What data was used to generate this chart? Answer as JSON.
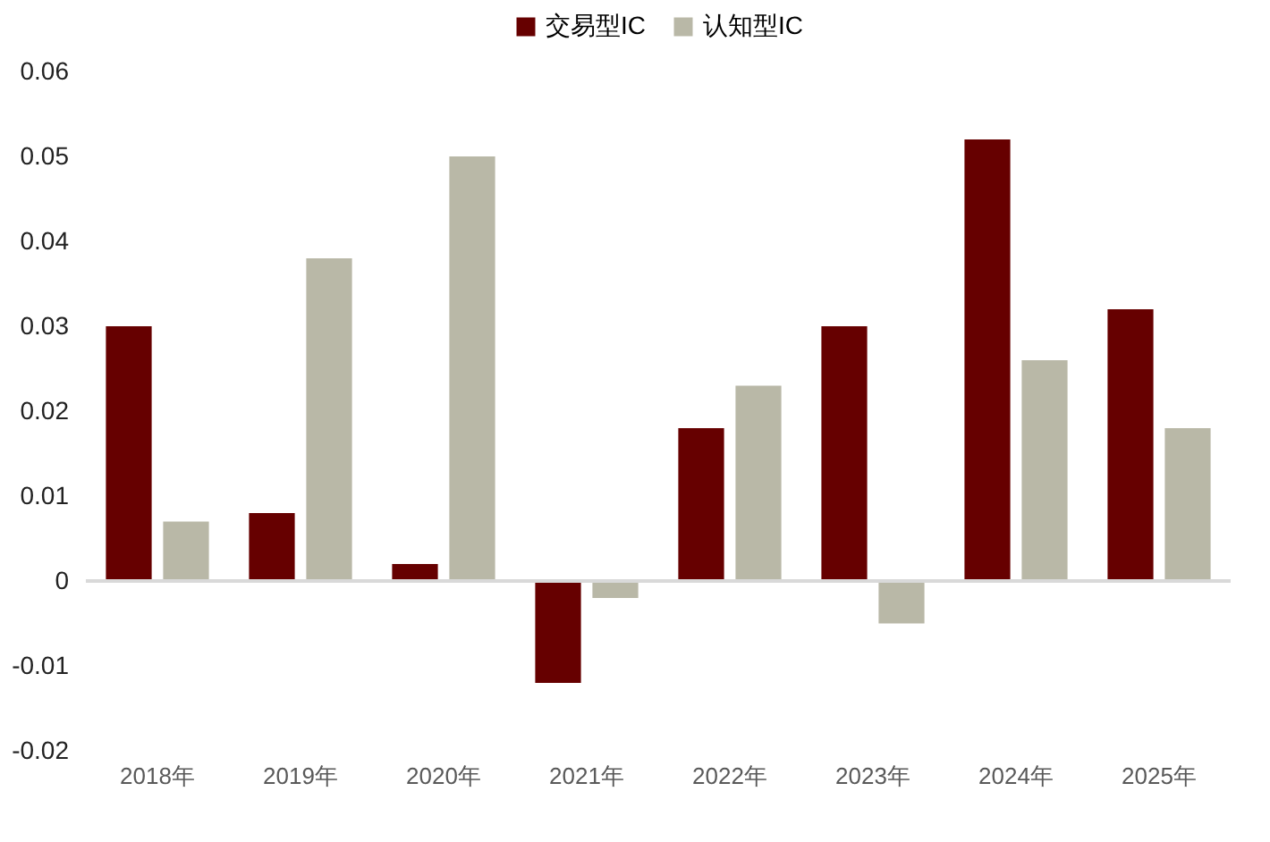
{
  "chart_data": {
    "type": "bar",
    "categories": [
      "2018年",
      "2019年",
      "2020年",
      "2021年",
      "2022年",
      "2023年",
      "2024年",
      "2025年"
    ],
    "series": [
      {
        "name": "交易型IC",
        "color": "#660000",
        "values": [
          0.03,
          0.008,
          0.002,
          -0.012,
          0.018,
          0.03,
          0.052,
          0.032
        ]
      },
      {
        "name": "认知型IC",
        "color": "#b9b8a7",
        "values": [
          0.007,
          0.038,
          0.05,
          -0.002,
          0.023,
          -0.005,
          0.026,
          0.018
        ]
      }
    ],
    "ylim": [
      -0.02,
      0.06
    ],
    "yticks": [
      {
        "value": -0.02,
        "label": "-0.02"
      },
      {
        "value": -0.01,
        "label": "-0.01"
      },
      0,
      0.01,
      0.02,
      0.03,
      0.04,
      0.05,
      0.06
    ],
    "ref_lines": [
      {
        "axis": "y",
        "value": 0,
        "color": "#d9d9d9"
      }
    ],
    "grid": false,
    "legend": "top"
  }
}
